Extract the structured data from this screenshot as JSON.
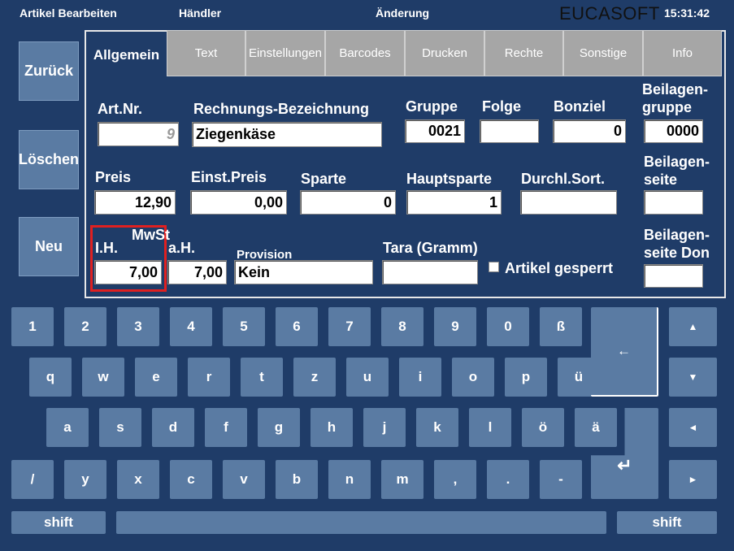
{
  "header": {
    "title": "Artikel Bearbeiten",
    "dealer": "Händler",
    "mode": "Änderung",
    "brand": "EUCASOFT",
    "time": "15:31:42"
  },
  "side_buttons": [
    "Zurück",
    "Löschen",
    "Neu"
  ],
  "tabs": [
    "Allgemein",
    "Text",
    "Einstellungen",
    "Barcodes",
    "Drucken",
    "Rechte",
    "Sonstige",
    "Info"
  ],
  "form": {
    "fields": [
      {
        "label": "Art.Nr.",
        "value": "9"
      },
      {
        "label": "Rechnungs-Bezeichnung",
        "value": "Ziegenkäse"
      },
      {
        "label": "Gruppe",
        "value": "0021"
      },
      {
        "label": "Folge"
      },
      {
        "label": "Bonziel",
        "value": "0"
      },
      {
        "label": [
          "Beilagen-",
          "gruppe"
        ],
        "value": "0000"
      },
      {
        "label": "Preis",
        "value": "12,90"
      },
      {
        "label": "Einst.Preis",
        "value": "0,00"
      },
      {
        "label": "Sparte",
        "value": "0"
      },
      {
        "label": "Hauptsparte",
        "value": "1"
      },
      {
        "label": "Durchl.Sort."
      },
      {
        "label": [
          "Beilagen-",
          "seite"
        ]
      },
      {
        "label": "I.H.",
        "value": "7,00"
      },
      {
        "label": "a.H.",
        "value": "7,00"
      },
      {
        "label": "Provision",
        "value": "Kein"
      },
      {
        "label": "Tara (Gramm)"
      },
      {
        "label": [
          "Beilagen-",
          "seite Don"
        ]
      }
    ],
    "group_label": "MwSt",
    "checkbox": "Artikel gesperrt"
  },
  "keyboard": {
    "rows": [
      [
        "1",
        "2",
        "3",
        "4",
        "5",
        "6",
        "7",
        "8",
        "9",
        "0",
        "ß"
      ],
      [
        "q",
        "w",
        "e",
        "r",
        "t",
        "z",
        "u",
        "i",
        "o",
        "p",
        "ü"
      ],
      [
        "a",
        "s",
        "d",
        "f",
        "g",
        "h",
        "j",
        "k",
        "l",
        "ö",
        "ä"
      ],
      [
        "/",
        "y",
        "x",
        "c",
        "v",
        "b",
        "n",
        "m",
        ",",
        ".",
        "-"
      ]
    ],
    "backspace": "←",
    "enter": "↵",
    "arrows": [
      "▲",
      "▼",
      "◄",
      "►"
    ],
    "shift_left": "shift",
    "shift_right": "shift"
  }
}
